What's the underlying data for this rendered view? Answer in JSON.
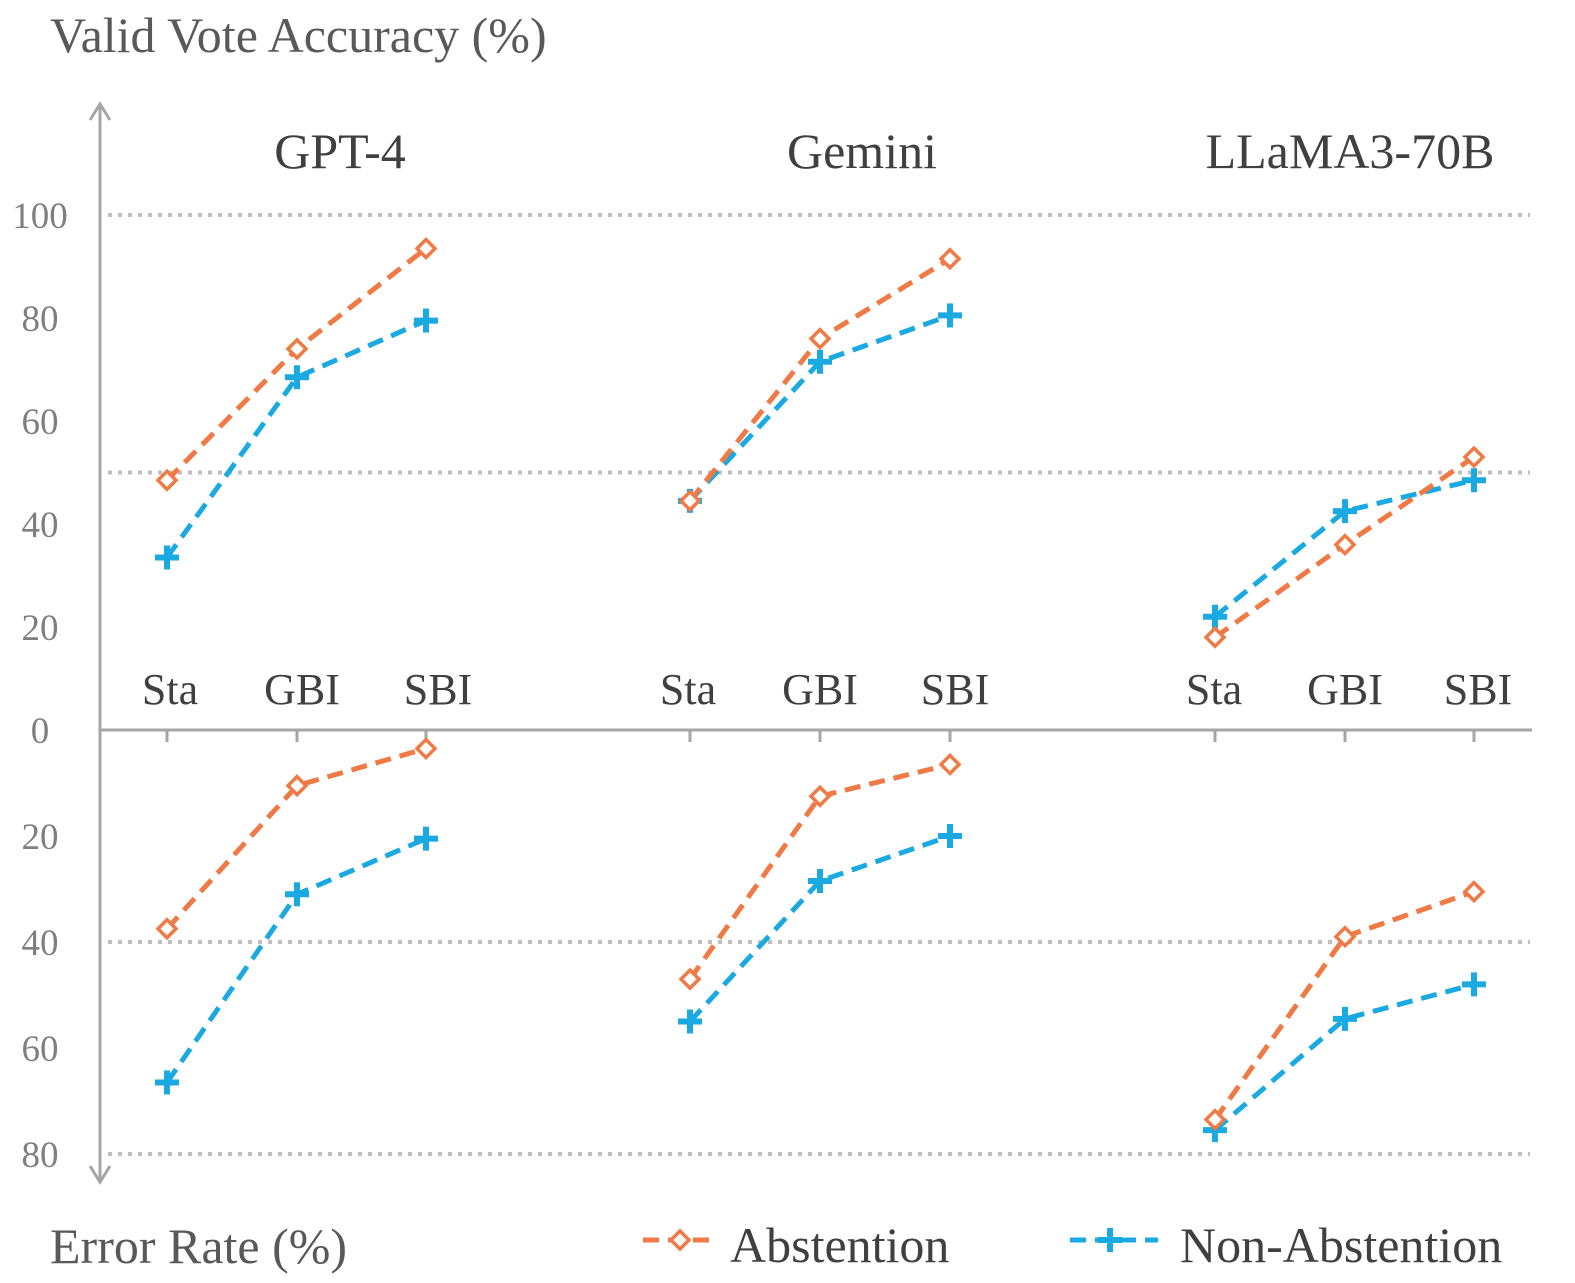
{
  "chart_data": {
    "type": "line",
    "ylabel_top": "Valid Vote Accuracy (%)",
    "ylabel_bottom": "Error Rate (%)",
    "top_ticks": [
      "0",
      "20",
      "40",
      "60",
      "80",
      "100"
    ],
    "top_tick_values": [
      0,
      20,
      40,
      60,
      80,
      100
    ],
    "bottom_ticks": [
      "20",
      "40",
      "60",
      "80"
    ],
    "bottom_tick_values": [
      20,
      40,
      60,
      80
    ],
    "top_ylim": [
      0,
      100
    ],
    "bottom_ylim": [
      0,
      80
    ],
    "gridlines_top": [
      50,
      100
    ],
    "gridlines_bottom": [
      40,
      80
    ],
    "categories": [
      "Sta",
      "GBI",
      "SBI"
    ],
    "legend_position": "bottom-right",
    "colors": {
      "abstention": "#f07a45",
      "non_abstention": "#1aa9e0",
      "axis": "#a6a6a6",
      "grid": "#bfbfbf"
    },
    "legend": [
      {
        "name": "Abstention",
        "marker": "diamond",
        "color": "#f07a45"
      },
      {
        "name": "Non-Abstention",
        "marker": "plus",
        "color": "#1aa9e0"
      }
    ],
    "panels": [
      {
        "title": "GPT-4",
        "accuracy": {
          "Abstention": [
            48.5,
            74,
            93.5
          ],
          "Non-Abstention": [
            33.5,
            68.5,
            79.5
          ]
        },
        "error_rate": {
          "Abstention": [
            37.5,
            10.5,
            3.5
          ],
          "Non-Abstention": [
            66.5,
            31,
            20.5
          ]
        }
      },
      {
        "title": "Gemini",
        "accuracy": {
          "Abstention": [
            44.5,
            76,
            91.5
          ],
          "Non-Abstention": [
            44.5,
            71.5,
            80.5
          ]
        },
        "error_rate": {
          "Abstention": [
            47,
            12.5,
            6.5
          ],
          "Non-Abstention": [
            55,
            28.5,
            20
          ]
        }
      },
      {
        "title": "LLaMA3-70B",
        "accuracy": {
          "Abstention": [
            18,
            36,
            53
          ],
          "Non-Abstention": [
            22,
            42.5,
            48.5
          ]
        },
        "error_rate": {
          "Abstention": [
            73.5,
            39,
            30.5
          ],
          "Non-Abstention": [
            75.5,
            54.5,
            48
          ]
        }
      }
    ]
  }
}
